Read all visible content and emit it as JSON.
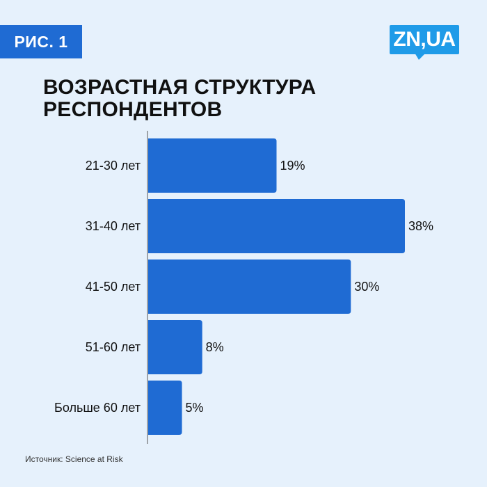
{
  "figure_label": "РИС. 1",
  "logo_text": "ZN,UA",
  "title": "ВОЗРАСТНАЯ СТРУКТУРА РЕСПОНДЕНТОВ",
  "source": "Источник: Science at Risk",
  "colors": {
    "background": "#e6f1fc",
    "bar": "#1f6bd3",
    "badge": "#1f6bd3",
    "logo": "#1f9be8",
    "axis": "#555555",
    "text": "#111111"
  },
  "chart_data": {
    "type": "bar",
    "orientation": "horizontal",
    "categories": [
      "21-30 лет",
      "31-40 лет",
      "41-50 лет",
      "51-60 лет",
      "Больше 60 лет"
    ],
    "values": [
      19,
      38,
      30,
      8,
      5
    ],
    "value_labels": [
      "19%",
      "38%",
      "30%",
      "8%",
      "5%"
    ],
    "title": "ВОЗРАСТНАЯ СТРУКТУРА РЕСПОНДЕНТОВ",
    "xlabel": "",
    "ylabel": "",
    "xlim": [
      0,
      38
    ],
    "unit": "%",
    "grid": false,
    "legend": "none"
  }
}
